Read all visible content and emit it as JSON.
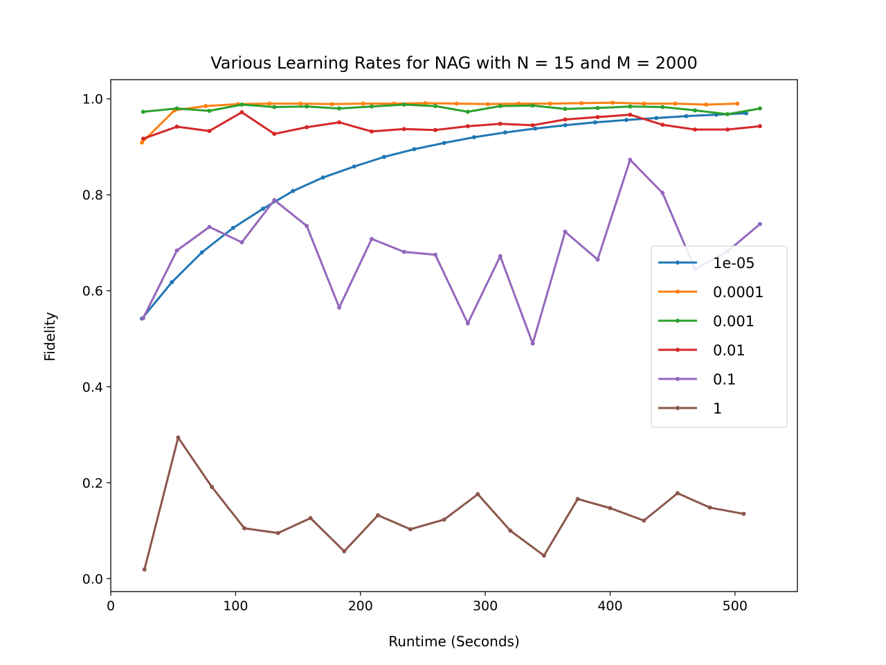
{
  "chart_data": {
    "type": "line",
    "title": "Various Learning Rates for NAG with N = 15 and M = 2000",
    "xlabel": "Runtime (Seconds)",
    "ylabel": "Fidelity",
    "xlim": [
      0,
      550
    ],
    "ylim": [
      -0.027,
      1.04
    ],
    "xticks": [
      0,
      100,
      200,
      300,
      400,
      500
    ],
    "yticks": [
      0.0,
      0.2,
      0.4,
      0.6,
      0.8,
      1.0
    ],
    "xtick_labels": [
      "0",
      "100",
      "200",
      "300",
      "400",
      "500"
    ],
    "ytick_labels": [
      "0.0",
      "0.2",
      "0.4",
      "0.6",
      "0.8",
      "1.0"
    ],
    "grid": false,
    "legend_position": "center-right",
    "series": [
      {
        "name": "1e-05",
        "color": "#1f77b4",
        "points": [
          [
            25,
            0.542
          ],
          [
            49,
            0.618
          ],
          [
            73,
            0.68
          ],
          [
            98,
            0.731
          ],
          [
            122,
            0.771
          ],
          [
            146,
            0.808
          ],
          [
            170,
            0.836
          ],
          [
            195,
            0.859
          ],
          [
            219,
            0.879
          ],
          [
            243,
            0.895
          ],
          [
            267,
            0.908
          ],
          [
            291,
            0.92
          ],
          [
            316,
            0.93
          ],
          [
            340,
            0.938
          ],
          [
            364,
            0.945
          ],
          [
            388,
            0.951
          ],
          [
            413,
            0.956
          ],
          [
            437,
            0.96
          ],
          [
            461,
            0.964
          ],
          [
            485,
            0.967
          ],
          [
            509,
            0.97
          ]
        ]
      },
      {
        "name": "0.0001",
        "color": "#ff7f0e",
        "points": [
          [
            25,
            0.909
          ],
          [
            51,
            0.976
          ],
          [
            76,
            0.985
          ],
          [
            102,
            0.989
          ],
          [
            127,
            0.99
          ],
          [
            152,
            0.99
          ],
          [
            177,
            0.989
          ],
          [
            202,
            0.99
          ],
          [
            227,
            0.99
          ],
          [
            252,
            0.991
          ],
          [
            277,
            0.99
          ],
          [
            302,
            0.989
          ],
          [
            327,
            0.99
          ],
          [
            352,
            0.99
          ],
          [
            377,
            0.991
          ],
          [
            402,
            0.992
          ],
          [
            427,
            0.99
          ],
          [
            452,
            0.99
          ],
          [
            477,
            0.988
          ],
          [
            502,
            0.99
          ]
        ]
      },
      {
        "name": "0.001",
        "color": "#2ca02c",
        "points": [
          [
            26,
            0.973
          ],
          [
            53,
            0.98
          ],
          [
            79,
            0.975
          ],
          [
            105,
            0.988
          ],
          [
            131,
            0.983
          ],
          [
            157,
            0.984
          ],
          [
            183,
            0.98
          ],
          [
            209,
            0.984
          ],
          [
            235,
            0.988
          ],
          [
            260,
            0.985
          ],
          [
            286,
            0.973
          ],
          [
            312,
            0.985
          ],
          [
            338,
            0.986
          ],
          [
            364,
            0.979
          ],
          [
            390,
            0.981
          ],
          [
            416,
            0.984
          ],
          [
            442,
            0.983
          ],
          [
            468,
            0.976
          ],
          [
            494,
            0.968
          ],
          [
            520,
            0.98
          ]
        ]
      },
      {
        "name": "0.01",
        "color": "#d62728",
        "points": [
          [
            26,
            0.917
          ],
          [
            53,
            0.942
          ],
          [
            79,
            0.933
          ],
          [
            105,
            0.972
          ],
          [
            131,
            0.927
          ],
          [
            157,
            0.941
          ],
          [
            183,
            0.951
          ],
          [
            209,
            0.932
          ],
          [
            235,
            0.937
          ],
          [
            260,
            0.935
          ],
          [
            286,
            0.943
          ],
          [
            312,
            0.948
          ],
          [
            338,
            0.945
          ],
          [
            364,
            0.957
          ],
          [
            390,
            0.962
          ],
          [
            416,
            0.967
          ],
          [
            442,
            0.946
          ],
          [
            468,
            0.936
          ],
          [
            494,
            0.936
          ],
          [
            520,
            0.943
          ]
        ]
      },
      {
        "name": "0.1",
        "color": "#9467bd",
        "points": [
          [
            26,
            0.543
          ],
          [
            53,
            0.684
          ],
          [
            79,
            0.733
          ],
          [
            105,
            0.701
          ],
          [
            131,
            0.789
          ],
          [
            157,
            0.735
          ],
          [
            183,
            0.565
          ],
          [
            209,
            0.708
          ],
          [
            235,
            0.681
          ],
          [
            260,
            0.675
          ],
          [
            286,
            0.532
          ],
          [
            312,
            0.672
          ],
          [
            338,
            0.49
          ],
          [
            364,
            0.723
          ],
          [
            390,
            0.665
          ],
          [
            416,
            0.873
          ],
          [
            442,
            0.804
          ],
          [
            468,
            0.645
          ],
          [
            494,
            0.682
          ],
          [
            520,
            0.739
          ]
        ]
      },
      {
        "name": "1",
        "color": "#8c564b",
        "points": [
          [
            27,
            0.019
          ],
          [
            54,
            0.294
          ],
          [
            81,
            0.191
          ],
          [
            107,
            0.105
          ],
          [
            134,
            0.095
          ],
          [
            160,
            0.126
          ],
          [
            187,
            0.057
          ],
          [
            214,
            0.132
          ],
          [
            240,
            0.103
          ],
          [
            267,
            0.123
          ],
          [
            294,
            0.176
          ],
          [
            320,
            0.1
          ],
          [
            347,
            0.048
          ],
          [
            374,
            0.166
          ],
          [
            400,
            0.147
          ],
          [
            427,
            0.121
          ],
          [
            454,
            0.178
          ],
          [
            480,
            0.148
          ],
          [
            507,
            0.135
          ]
        ]
      }
    ]
  }
}
